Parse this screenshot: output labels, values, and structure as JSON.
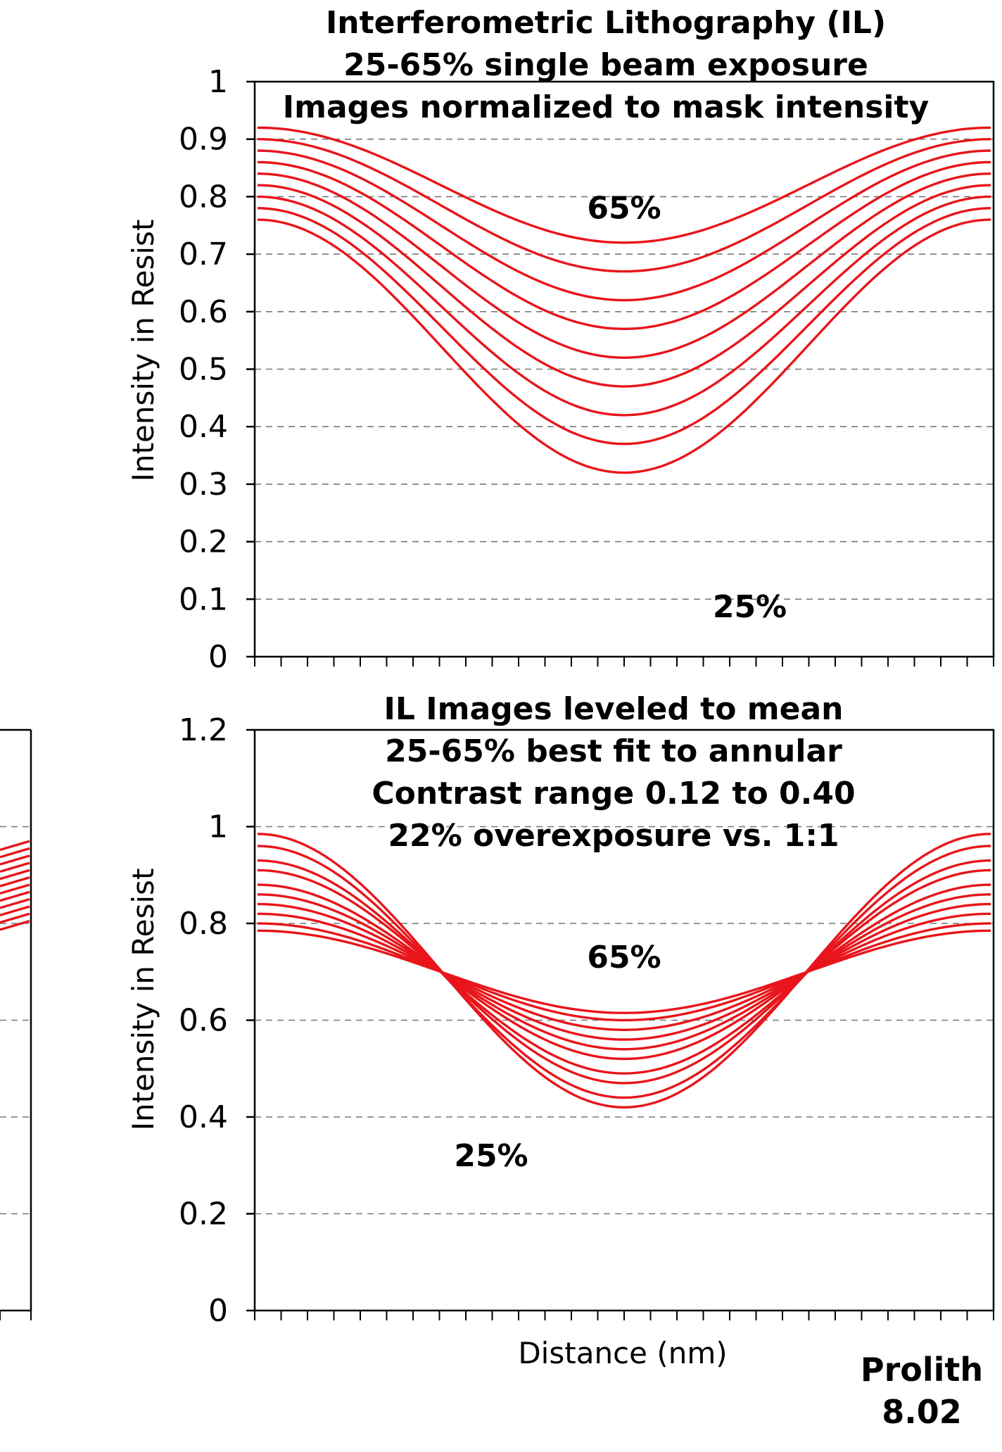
{
  "series_color": "#e8151b",
  "grid_color": "#777777",
  "footer": {
    "x_axis_label": "Distance (nm)",
    "credit_line1": "Prolith",
    "credit_line2": "8.02"
  },
  "chart_data": [
    {
      "type": "line",
      "title": [
        "Interferometric Lithography (IL)",
        "25-65% single beam exposure",
        "Images normalized to mask intensity"
      ],
      "ylabel": "Intensity in Resist",
      "xlabel": "",
      "ylim": [
        0,
        1
      ],
      "yticks": [
        0,
        0.1,
        0.2,
        0.3,
        0.4,
        0.5,
        0.6,
        0.7,
        0.8,
        0.9,
        1
      ],
      "ytick_labels": [
        "0",
        "0.1",
        "0.2",
        "0.3",
        "0.4",
        "0.5",
        "0.6",
        "0.7",
        "0.8",
        "0.9",
        "1"
      ],
      "x_tick_count": 29,
      "grid": "horizontal-dashed",
      "annotations": [
        {
          "text": "65%",
          "x": 0.5,
          "y": 0.78
        },
        {
          "text": "25%",
          "x": 0.67,
          "y": 0.087
        }
      ],
      "series_shape": "cosine",
      "series": [
        {
          "max": 0.92,
          "min": 0.72
        },
        {
          "max": 0.9,
          "min": 0.67
        },
        {
          "max": 0.88,
          "min": 0.62
        },
        {
          "max": 0.86,
          "min": 0.57
        },
        {
          "max": 0.84,
          "min": 0.52
        },
        {
          "max": 0.82,
          "min": 0.47
        },
        {
          "max": 0.8,
          "min": 0.42
        },
        {
          "max": 0.78,
          "min": 0.37
        },
        {
          "max": 0.76,
          "min": 0.32
        }
      ]
    },
    {
      "type": "line",
      "title": [
        "IL Images leveled to mean",
        "25-65% best fit to annular",
        "Contrast range 0.12 to 0.40",
        "22% overexposure vs. 1:1"
      ],
      "ylabel": "Intensity in Resist",
      "xlabel": "Distance (nm)",
      "ylim": [
        0,
        1.2
      ],
      "yticks": [
        0,
        0.2,
        0.4,
        0.6,
        0.8,
        1,
        1.2
      ],
      "ytick_labels": [
        "0",
        "0.2",
        "0.4",
        "0.6",
        "0.8",
        "1",
        "1.2"
      ],
      "x_tick_count": 29,
      "grid": "horizontal-dashed",
      "annotations": [
        {
          "text": "65%",
          "x": 0.5,
          "y": 0.73
        },
        {
          "text": "25%",
          "x": 0.32,
          "y": 0.32
        }
      ],
      "series_shape": "cosine",
      "series": [
        {
          "max": 0.785,
          "min": 0.615
        },
        {
          "max": 0.8,
          "min": 0.6
        },
        {
          "max": 0.82,
          "min": 0.58
        },
        {
          "max": 0.84,
          "min": 0.56
        },
        {
          "max": 0.86,
          "min": 0.54
        },
        {
          "max": 0.88,
          "min": 0.52
        },
        {
          "max": 0.91,
          "min": 0.49
        },
        {
          "max": 0.93,
          "min": 0.47
        },
        {
          "max": 0.96,
          "min": 0.44
        },
        {
          "max": 0.985,
          "min": 0.42
        }
      ]
    },
    {
      "type": "line",
      "note": "partially visible chart cropped at left edge",
      "ylim": [
        0,
        1.2
      ],
      "yticks": [
        0,
        0.2,
        0.4,
        0.6,
        0.8,
        1,
        1.2
      ],
      "grid": "horizontal-dashed",
      "series_shape": "right-edge-rise",
      "series": [
        {
          "end": 0.97
        },
        {
          "end": 0.955
        },
        {
          "end": 0.94
        },
        {
          "end": 0.925
        },
        {
          "end": 0.91
        },
        {
          "end": 0.895
        },
        {
          "end": 0.88
        },
        {
          "end": 0.865
        },
        {
          "end": 0.85
        },
        {
          "end": 0.835
        },
        {
          "end": 0.82
        },
        {
          "end": 0.805
        }
      ]
    }
  ]
}
